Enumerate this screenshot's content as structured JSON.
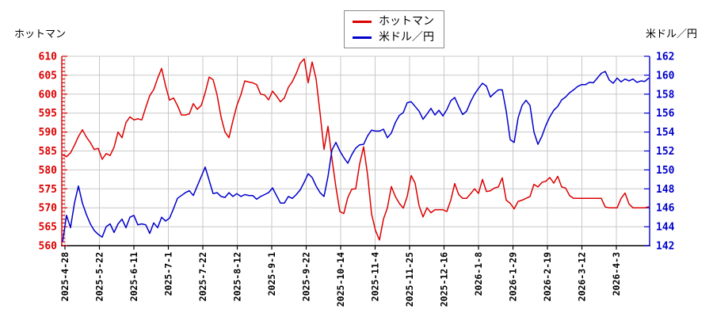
{
  "titles": {
    "left": "ホットマン",
    "right": "米ドル／円"
  },
  "legend": {
    "items": [
      {
        "label": "ホットマン",
        "color": "#dd0000"
      },
      {
        "label": "米ドル／円",
        "color": "#0000cc"
      }
    ]
  },
  "chart_data": {
    "type": "line",
    "title": "",
    "grid": true,
    "legend_position": "top-center",
    "x_tick_labels": [
      "2025-4-28",
      "2025-5-22",
      "2025-6-11",
      "2025-7-1",
      "2025-7-22",
      "2025-8-12",
      "2025-9-1",
      "2025-9-22",
      "2025-10-14",
      "2025-11-4",
      "2025-11-25",
      "2025-12-16",
      "2026-1-8",
      "2026-1-29",
      "2026-2-19",
      "2026-3-12",
      "2026-4-3"
    ],
    "left_axis": {
      "label": "ホットマン",
      "color": "#dd0000",
      "min": 560,
      "max": 610,
      "tick_step": 5,
      "minor_step": 1,
      "tick_labels": [
        "560",
        "565",
        "570",
        "575",
        "580",
        "585",
        "590",
        "595",
        "600",
        "605",
        "610"
      ]
    },
    "right_axis": {
      "label": "米ドル／円",
      "color": "#0000cc",
      "min": 142,
      "max": 162,
      "tick_step": 2,
      "tick_labels": [
        "142",
        "144",
        "146",
        "148",
        "150",
        "152",
        "154",
        "156",
        "158",
        "160",
        "162"
      ]
    },
    "series": [
      {
        "name": "ホットマン",
        "axis": "left",
        "color": "#dd0000",
        "values": [
          584,
          583.5,
          584.5,
          586.5,
          588.8,
          590.6,
          588.7,
          587.2,
          585.4,
          585.7,
          582.8,
          584.3,
          583.8,
          586,
          590,
          588.5,
          592.5,
          594,
          593.2,
          593.5,
          593.2,
          596.5,
          599.6,
          601.2,
          604.2,
          606.8,
          602.2,
          598.4,
          599,
          597,
          594.5,
          594.5,
          594.8,
          597.5,
          596,
          597,
          600.4,
          604.5,
          603.8,
          599.8,
          594,
          590,
          588.5,
          593,
          597,
          599.8,
          603.5,
          603.2,
          603,
          602.5,
          600,
          599.8,
          598.5,
          600.8,
          599.5,
          598,
          599,
          601.8,
          603.3,
          605.5,
          608.2,
          609.3,
          603,
          608.5,
          604,
          595,
          585.4,
          591.5,
          583,
          575.5,
          569,
          568.5,
          572.7,
          574.9,
          575,
          581.6,
          586.1,
          578.7,
          568.4,
          564,
          561.5,
          567,
          570,
          575.6,
          573,
          571.2,
          569.9,
          573,
          578.5,
          576.5,
          570.5,
          567.6,
          570,
          568.7,
          569.5,
          569.5,
          569.5,
          569,
          572,
          576.4,
          573.5,
          572.5,
          572.5,
          573.7,
          575,
          573.8,
          577.5,
          574.3,
          574.5,
          575.2,
          575.5,
          577.9,
          572,
          571.2,
          569.7,
          571.7,
          572,
          572.5,
          573,
          576.2,
          575.5,
          576.7,
          577,
          578,
          576.5,
          578.3,
          575.5,
          575.2,
          573.2,
          572.5,
          572.5,
          572.5,
          572.5,
          572.5,
          572.5,
          572.5,
          572.5,
          570.2,
          570,
          570,
          570,
          572.5,
          573.9,
          571,
          570,
          570,
          570,
          570,
          570.3
        ]
      },
      {
        "name": "米ドル／円",
        "axis": "right",
        "color": "#0000cc",
        "values": [
          142.4,
          145.2,
          143.9,
          146.5,
          148.3,
          146.5,
          145.3,
          144.3,
          143.6,
          143.2,
          142.9,
          144.0,
          144.3,
          143.4,
          144.3,
          144.8,
          143.9,
          145.0,
          145.2,
          144.2,
          144.3,
          144.2,
          143.3,
          144.4,
          143.9,
          145.0,
          144.6,
          144.9,
          145.9,
          147.0,
          147.3,
          147.6,
          147.8,
          147.3,
          148.3,
          149.3,
          150.3,
          148.9,
          147.5,
          147.6,
          147.2,
          147.1,
          147.6,
          147.2,
          147.5,
          147.2,
          147.4,
          147.3,
          147.3,
          146.9,
          147.2,
          147.4,
          147.6,
          148.1,
          147.3,
          146.5,
          146.5,
          147.2,
          147.0,
          147.4,
          147.9,
          148.7,
          149.6,
          149.2,
          148.3,
          147.6,
          147.2,
          149.3,
          152.1,
          152.9,
          152.0,
          151.3,
          150.7,
          151.6,
          152.3,
          152.65,
          152.7,
          153.6,
          154.2,
          154.1,
          154.1,
          154.3,
          153.4,
          153.9,
          155.0,
          155.75,
          156.05,
          157.1,
          157.2,
          156.7,
          156.2,
          155.35,
          155.9,
          156.5,
          155.8,
          156.3,
          155.7,
          156.35,
          157.3,
          157.65,
          156.7,
          155.85,
          156.2,
          157.2,
          158.0,
          158.6,
          159.15,
          158.85,
          157.7,
          158.1,
          158.45,
          158.45,
          156.2,
          153.2,
          152.9,
          155.5,
          156.8,
          157.35,
          156.8,
          154.0,
          152.7,
          153.55,
          154.7,
          155.6,
          156.3,
          156.7,
          157.4,
          157.7,
          158.15,
          158.45,
          158.8,
          159.0,
          159.0,
          159.25,
          159.2,
          159.7,
          160.2,
          160.4,
          159.5,
          159.15,
          159.7,
          159.3,
          159.6,
          159.4,
          159.6,
          159.25,
          159.4,
          159.35,
          159.7
        ]
      }
    ]
  }
}
